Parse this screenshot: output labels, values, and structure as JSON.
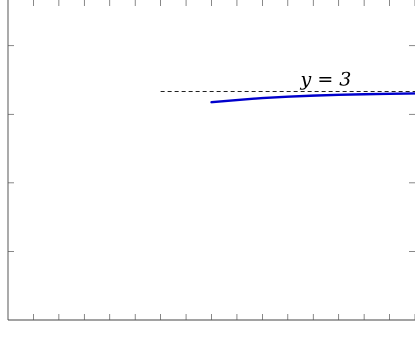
{
  "chart_data": {
    "type": "line",
    "title": "",
    "xlabel": "",
    "ylabel": "",
    "xlim": [
      -2,
      6
    ],
    "ylim": [
      -2,
      5
    ],
    "grid": false,
    "asymptote": {
      "y": 3,
      "x_from": 1,
      "x_to": 6,
      "style": "dashed",
      "color": "#000000"
    },
    "annotation": {
      "text": "y = 3"
    },
    "series": [
      {
        "color": "#0000cc",
        "x": [
          2,
          2.5,
          3,
          3.5,
          4,
          4.5,
          5,
          5.5,
          6
        ],
        "y": [
          2.765,
          2.812,
          2.856,
          2.886,
          2.908,
          2.925,
          2.938,
          2.948,
          2.957
        ]
      }
    ]
  }
}
